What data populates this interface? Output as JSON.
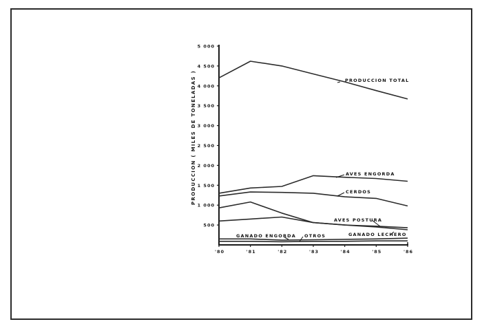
{
  "chart_data": {
    "type": "line",
    "title": "",
    "xlabel": "",
    "ylabel": "PRODUCCION ( MILES DE TONELADAS )",
    "ylim": [
      0,
      5000
    ],
    "yticks": [
      500,
      1000,
      1500,
      2000,
      2500,
      3000,
      3500,
      4000,
      4500,
      5000
    ],
    "ytick_labels": [
      "500",
      "1 000",
      "1 500",
      "2 000",
      "2 500",
      "3 000",
      "3 500",
      "4 000",
      "4 500",
      "5 000"
    ],
    "categories": [
      "'80",
      "'81",
      "'82",
      "'83",
      "'84",
      "'85",
      "'86"
    ],
    "grid": false,
    "legend": "inline labels",
    "series": [
      {
        "name": "PRODUCCION TOTAL",
        "values": [
          4200,
          4620,
          4500,
          4300,
          4100,
          3880,
          3670
        ]
      },
      {
        "name": "AVES ENGORDA",
        "values": [
          1300,
          1430,
          1470,
          1740,
          1700,
          1670,
          1600
        ]
      },
      {
        "name": "CERDOS",
        "values": [
          1230,
          1330,
          1320,
          1300,
          1210,
          1170,
          980
        ]
      },
      {
        "name": "AVES POSTURA",
        "values": [
          930,
          1080,
          800,
          560,
          500,
          450,
          380
        ]
      },
      {
        "name": "GANADO LECHERO",
        "values": [
          600,
          650,
          700,
          560,
          500,
          470,
          430
        ]
      },
      {
        "name": "GANADO ENGORDA",
        "values": [
          150,
          150,
          120,
          130,
          140,
          150,
          170
        ]
      },
      {
        "name": "OTROS",
        "values": [
          90,
          90,
          80,
          90,
          90,
          100,
          100
        ]
      }
    ]
  }
}
